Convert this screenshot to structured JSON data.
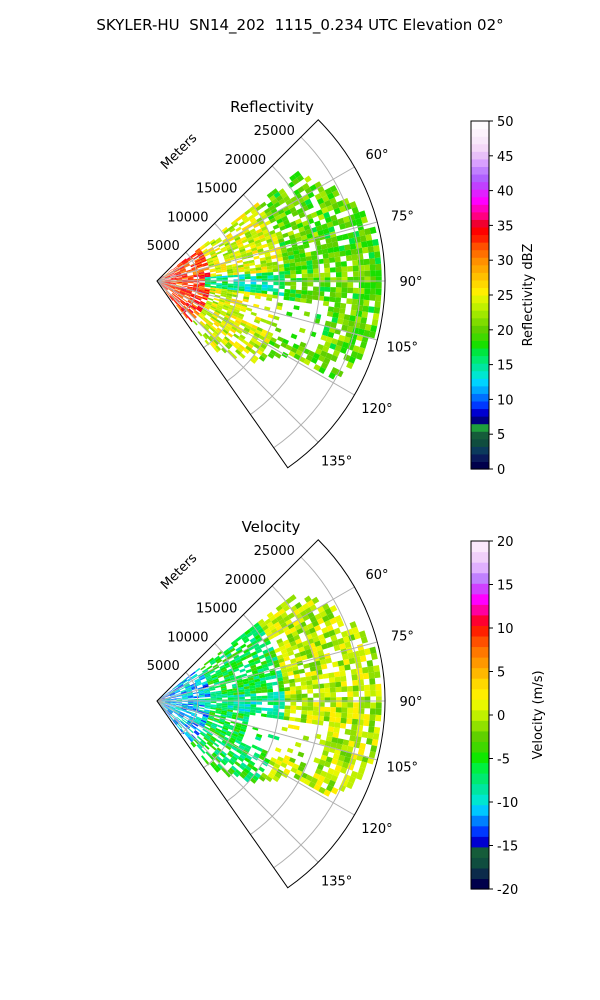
{
  "suptitle": "SKYLER-HU  SN14_202  1115_0.234 UTC Elevation 02°",
  "chart_data": [
    {
      "type": "polar-sector",
      "title": "Reflectivity",
      "range_label": "Meters",
      "range_ticks": [
        5000,
        10000,
        15000,
        20000,
        25000
      ],
      "range_max": 28000,
      "azimuth_ticks": [
        60,
        75,
        90,
        105,
        120,
        135
      ],
      "azimuth_tick_labels": [
        "60°",
        "75°",
        "90°",
        "105°",
        "120°",
        "135°"
      ],
      "azimuth_range": [
        45,
        145
      ],
      "grid": true,
      "colorbar": {
        "label": "Reflectivity dBZ",
        "min": 0,
        "max": 50,
        "ticks": [
          0,
          5,
          10,
          15,
          20,
          25,
          30,
          35,
          40,
          45,
          50
        ],
        "colors": [
          "#00004b",
          "#0a1a5a",
          "#0b3a5c",
          "#0f4d3f",
          "#155c3a",
          "#1ea03c",
          "#00007f",
          "#0000d0",
          "#0038ff",
          "#0070ff",
          "#00a8ff",
          "#00d4ff",
          "#00e6d0",
          "#00e6a0",
          "#00ea70",
          "#00e640",
          "#18e000",
          "#40d800",
          "#60d000",
          "#80dc00",
          "#a0e800",
          "#c0f000",
          "#e0f400",
          "#ffee00",
          "#ffd800",
          "#ffc000",
          "#ffa800",
          "#ff9000",
          "#ff7000",
          "#ff5000",
          "#ff2000",
          "#ff0000",
          "#f00030",
          "#ff0080",
          "#ff00c0",
          "#ff00ff",
          "#e020ff",
          "#c040ff",
          "#b060ff",
          "#c080ff",
          "#d8a0ff",
          "#e8c0f8",
          "#f4d8f8",
          "#f8e8fa",
          "#fcf2fc",
          "#fefafe"
        ]
      },
      "field_description_levels": {
        "near_core": 33,
        "mid": 24,
        "far": 20,
        "notch_center": 15
      }
    },
    {
      "type": "polar-sector",
      "title": "Velocity",
      "range_label": "Meters",
      "range_ticks": [
        5000,
        10000,
        15000,
        20000,
        25000
      ],
      "range_max": 28000,
      "azimuth_ticks": [
        60,
        75,
        90,
        105,
        120,
        135
      ],
      "azimuth_tick_labels": [
        "60°",
        "75°",
        "90°",
        "105°",
        "120°",
        "135°"
      ],
      "azimuth_range": [
        45,
        145
      ],
      "grid": true,
      "colorbar": {
        "label": "Velocity (m/s)",
        "min": -20,
        "max": 20,
        "ticks": [
          -20,
          -15,
          -10,
          -5,
          0,
          5,
          10,
          15,
          20
        ],
        "colors": [
          "#00004b",
          "#0b2a4a",
          "#0f4d3f",
          "#155c3a",
          "#0000d0",
          "#0038ff",
          "#0080ff",
          "#00c8ff",
          "#00e6d0",
          "#00e6a0",
          "#00ea70",
          "#00f040",
          "#10e800",
          "#40d800",
          "#60d000",
          "#90e000",
          "#c0f000",
          "#e8f800",
          "#ffee00",
          "#ffd800",
          "#ffb800",
          "#ff9800",
          "#ff7800",
          "#ff5000",
          "#ff2000",
          "#ff0030",
          "#ff00a0",
          "#ff00ff",
          "#d040ff",
          "#c080ff",
          "#e0b0ff",
          "#f0d0fa",
          "#fae8fc"
        ]
      },
      "field_description_levels": {
        "near_core": -11,
        "mid": -6,
        "far": 0,
        "notch_center": -8
      }
    }
  ]
}
